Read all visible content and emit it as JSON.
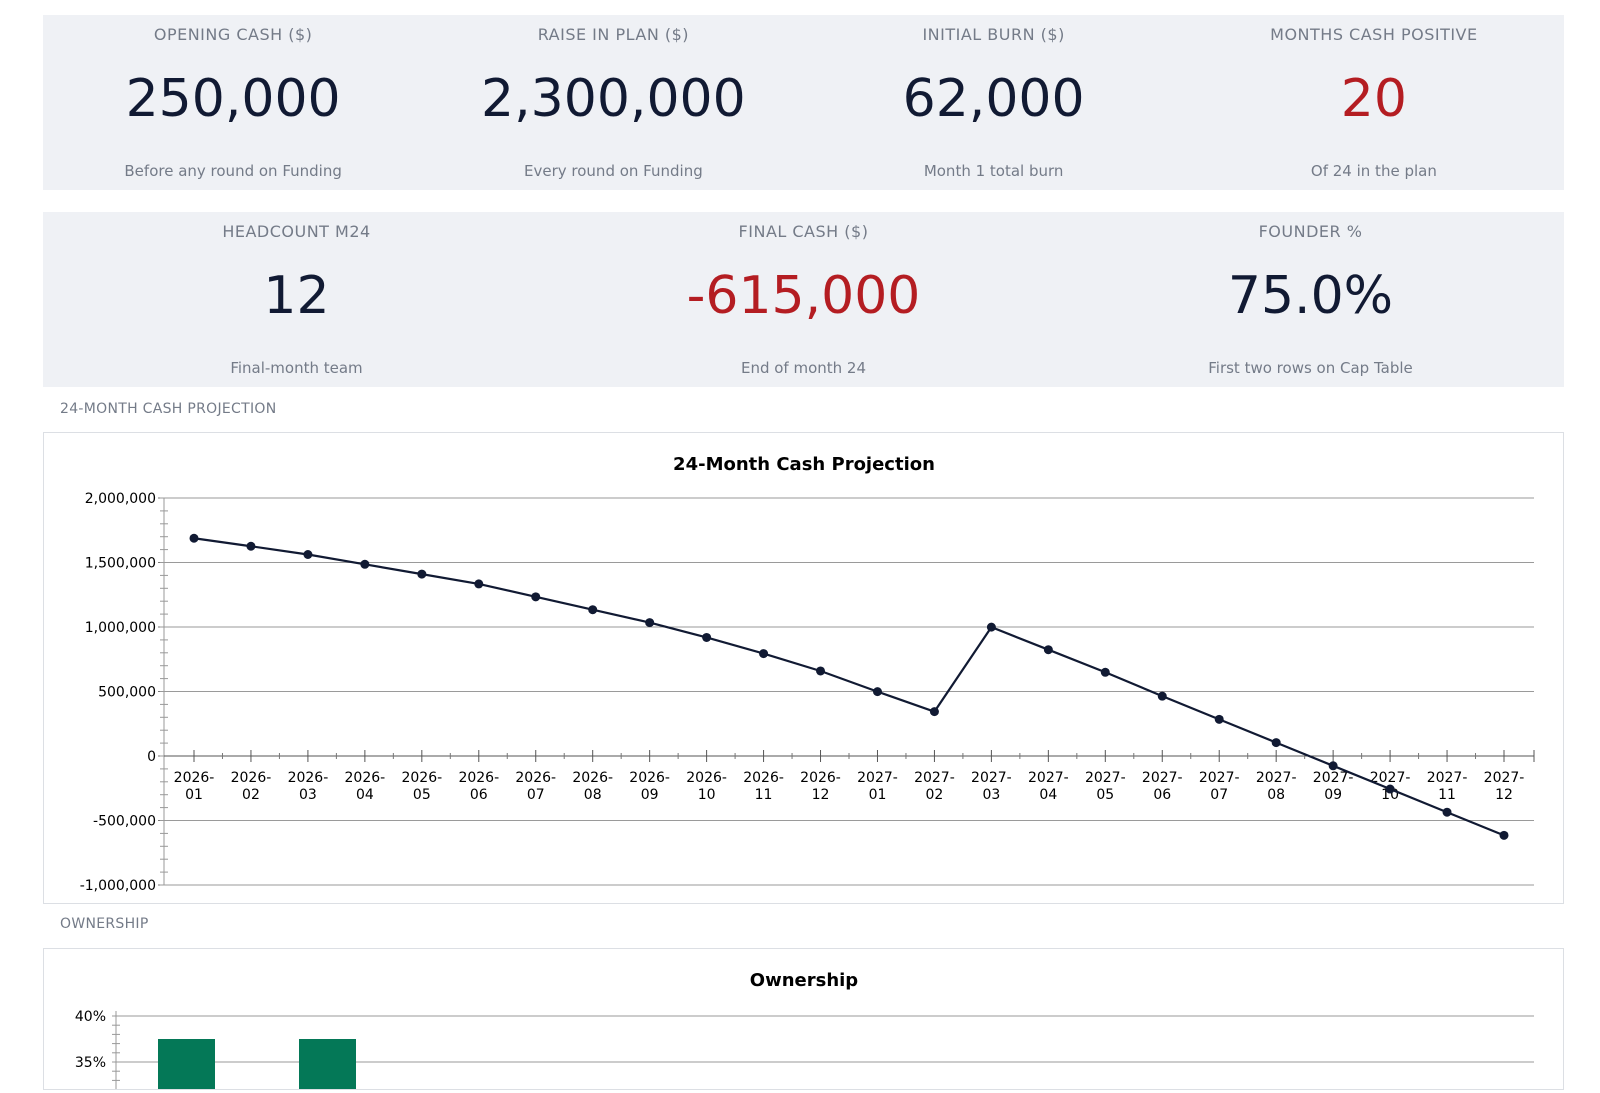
{
  "kpis_row1": [
    {
      "label": "OPENING CASH ($)",
      "value": "250,000",
      "sub": "Before any round on Funding",
      "negative": false
    },
    {
      "label": "RAISE IN PLAN ($)",
      "value": "2,300,000",
      "sub": "Every round on Funding",
      "negative": false
    },
    {
      "label": "INITIAL BURN ($)",
      "value": "62,000",
      "sub": "Month 1 total burn",
      "negative": false
    },
    {
      "label": "MONTHS CASH POSITIVE",
      "value": "20",
      "sub": "Of 24 in the plan",
      "negative": true
    }
  ],
  "kpis_row2": [
    {
      "label": "HEADCOUNT M24",
      "value": "12",
      "sub": "Final-month team",
      "negative": false
    },
    {
      "label": "FINAL CASH ($)",
      "value": "-615,000",
      "sub": "End of month 24",
      "negative": true
    },
    {
      "label": "FOUNDER %",
      "value": "75.0%",
      "sub": "First two rows on Cap Table",
      "negative": false
    }
  ],
  "sections": {
    "cash": "24-MONTH CASH PROJECTION",
    "ownership": "OWNERSHIP"
  },
  "colors": {
    "line": "#111a33",
    "bar": "#047857",
    "negative": "#b41d22"
  },
  "chart_data": [
    {
      "type": "line",
      "title": "24-Month Cash Projection",
      "xlabel": "",
      "ylabel": "",
      "categories": [
        "2026-01",
        "2026-02",
        "2026-03",
        "2026-04",
        "2026-05",
        "2026-06",
        "2026-07",
        "2026-08",
        "2026-09",
        "2026-10",
        "2026-11",
        "2026-12",
        "2027-01",
        "2027-02",
        "2027-03",
        "2027-04",
        "2027-05",
        "2027-06",
        "2027-07",
        "2027-08",
        "2027-09",
        "2027-10",
        "2027-11",
        "2027-12"
      ],
      "values": [
        1688000,
        1626000,
        1562000,
        1486000,
        1410000,
        1334000,
        1234000,
        1134000,
        1034000,
        919000,
        794000,
        659000,
        499000,
        344000,
        999000,
        824000,
        649000,
        464000,
        284000,
        104000,
        -76000,
        -256000,
        -436000,
        -615000
      ],
      "ylim": [
        -1000000,
        2000000
      ],
      "yticks": [
        -1000000,
        -500000,
        0,
        500000,
        1000000,
        1500000,
        2000000
      ],
      "ytick_labels": [
        "-1,000,000",
        "-500,000",
        "0",
        "500,000",
        "1,000,000",
        "1,500,000",
        "2,000,000"
      ],
      "grid": true
    },
    {
      "type": "bar",
      "title": "Ownership",
      "categories": [
        "",
        ""
      ],
      "values": [
        37.5,
        37.5
      ],
      "ylim_visible": [
        35,
        40
      ],
      "ytick_labels": [
        "35%",
        "40%"
      ],
      "grid": true
    }
  ]
}
